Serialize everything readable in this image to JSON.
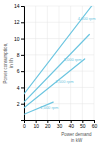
{
  "chart_data": {
    "type": "line",
    "xlabel": "Power demand\nin kW",
    "ylabel": "Power consumption,\nin l/h",
    "color": "#6cc5e0",
    "grid": true,
    "xlim": [
      0,
      60
    ],
    "ylim": [
      0,
      14
    ],
    "xticks": [
      0,
      10,
      20,
      30,
      40,
      50,
      60
    ],
    "yticks": [
      2,
      4,
      6,
      8,
      10,
      12,
      14
    ],
    "series": [
      {
        "x": [
          0,
          25
        ],
        "values": [
          0.7,
          2.2
        ]
      },
      {
        "x": [
          0,
          52
        ],
        "values": [
          1.5,
          7.5
        ]
      },
      {
        "x": [
          0,
          56
        ],
        "values": [
          2.2,
          10.5
        ]
      },
      {
        "x": [
          0,
          58
        ],
        "values": [
          3.2,
          14.0
        ]
      }
    ],
    "annotations": [
      {
        "text": "1,000 rpm",
        "x": 14,
        "y": 1.35
      },
      {
        "text": "2,500 rpm",
        "x": 27,
        "y": 4.5
      },
      {
        "text": "3,000 rpm",
        "x": 34,
        "y": 7.2
      },
      {
        "text": "4,000 rpm",
        "x": 46,
        "y": 12.3
      }
    ]
  }
}
